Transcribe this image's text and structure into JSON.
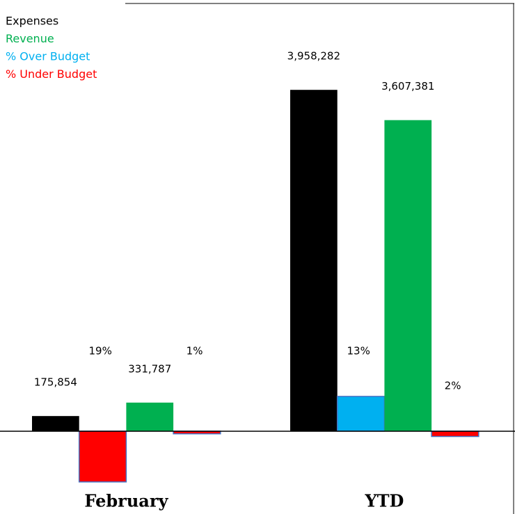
{
  "chart_data": {
    "type": "bar",
    "categories": [
      "February",
      "YTD"
    ],
    "legend": [
      {
        "name": "Expenses",
        "color": "#000000"
      },
      {
        "name": "Revenue",
        "color": "#00b050"
      },
      {
        "name": "% Over Budget",
        "color": "#00b0f0"
      },
      {
        "name": "% Under Budget",
        "color": "#ff0000"
      }
    ],
    "series": [
      {
        "color": "#000000",
        "values": [
          175854,
          3958282
        ],
        "value_labels": [
          "175,854",
          "3,958,282"
        ]
      },
      {
        "axis": "y2",
        "values": [
          -19,
          13
        ],
        "value_labels": [
          "19%",
          "13%"
        ]
      },
      {
        "color": "#00b050",
        "values": [
          331787,
          3607381
        ],
        "value_labels": [
          "331,787",
          "3,607,381"
        ]
      },
      {
        "axis": "y2",
        "values": [
          -1,
          -2
        ],
        "value_labels": [
          "1%",
          "2%"
        ]
      }
    ],
    "ylim": [
      -960000,
      4960000
    ],
    "y2lim": [
      -31,
      160
    ]
  }
}
